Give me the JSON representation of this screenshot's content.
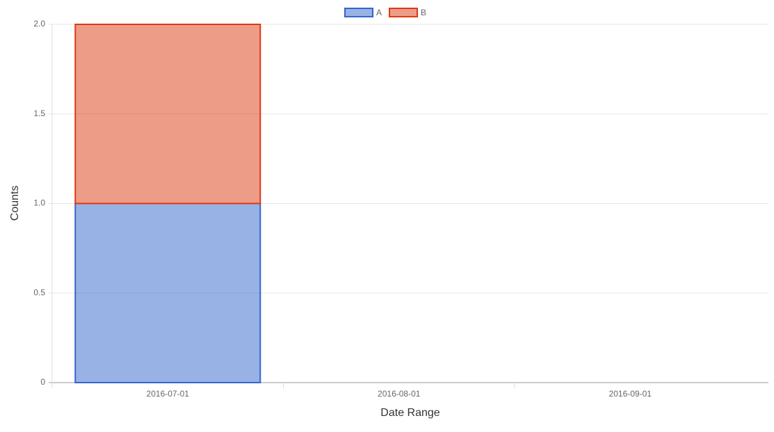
{
  "chart_data": {
    "type": "stacked-bar",
    "categories": [
      "2016-07-01",
      "2016-08-01",
      "2016-09-01"
    ],
    "series": [
      {
        "name": "A",
        "color": "#3366cc",
        "values": [
          1,
          0,
          0
        ]
      },
      {
        "name": "B",
        "color": "#dc3912",
        "values": [
          1,
          0,
          0
        ]
      }
    ],
    "ylim": [
      0,
      2
    ],
    "yticks": [
      0,
      0.5,
      {
        "value": 1,
        "label": "1.0"
      },
      1.5,
      {
        "value": 2,
        "label": "2.0"
      }
    ],
    "grid": true,
    "x_label": "Date Range",
    "y_label": "Counts",
    "legend": "top"
  }
}
